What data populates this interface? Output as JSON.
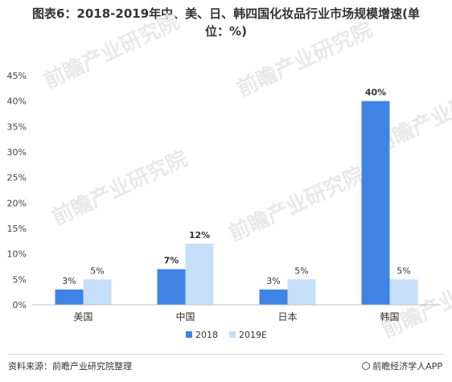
{
  "chart_data": {
    "type": "bar",
    "title": "图表6：2018-2019年中、美、日、韩四国化妆品行业市场规模增速(单位：%)",
    "title_lines": [
      "图表6：2018-2019年中、美、日、韩四国化妆品行业市场规模增速(单",
      "位：%)"
    ],
    "categories": [
      "美国",
      "中国",
      "日本",
      "韩国"
    ],
    "series": [
      {
        "name": "2018",
        "values": [
          3,
          7,
          3,
          40
        ],
        "labels": [
          "3%",
          "7%",
          "3%",
          "40%"
        ],
        "color": "#3f84e5"
      },
      {
        "name": "2019E",
        "values": [
          5,
          12,
          5,
          5
        ],
        "labels": [
          "5%",
          "12%",
          "5%",
          "5%"
        ],
        "color": "#c6dff8"
      }
    ],
    "ylim": [
      0,
      45
    ],
    "yticks": [
      "0%",
      "5%",
      "10%",
      "15%",
      "20%",
      "25%",
      "30%",
      "35%",
      "40%",
      "45%"
    ],
    "grid": false,
    "legend_position": "bottom"
  },
  "watermark": "前瞻产业研究院",
  "footer": {
    "source": "资料来源：前瞻产业研究院整理",
    "brand": "前瞻经济学人APP",
    "brand_icon": "qianzhan-logo-icon"
  }
}
